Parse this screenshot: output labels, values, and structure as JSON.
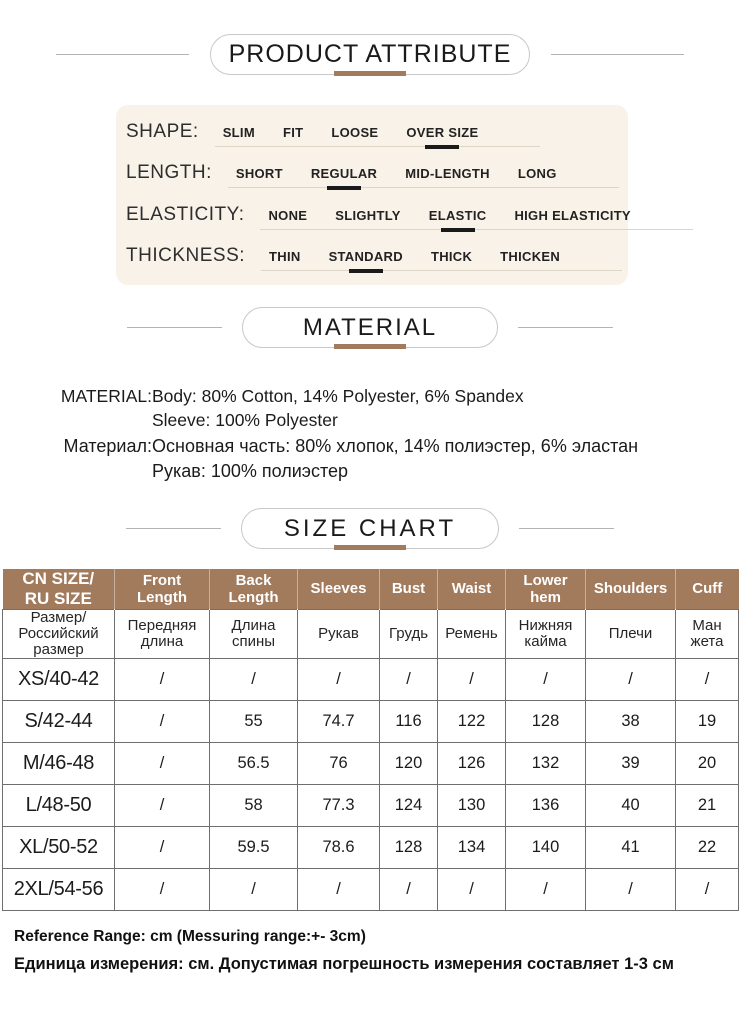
{
  "colors": {
    "accent_brown": "#a27a5c",
    "attribute_box_bg": "#f8f2e8",
    "table_header_text": "#ffffff",
    "selected_mark": "#1a1a1a"
  },
  "section_headers": {
    "product": "PRODUCT ATTRIBUTE",
    "material": "MATERIAL",
    "size_chart": "SIZE CHART"
  },
  "attributes": [
    {
      "label": "SHAPE:",
      "options": [
        "SLIM",
        "FIT",
        "LOOSE",
        "OVER SIZE"
      ],
      "selected_index": 3
    },
    {
      "label": "LENGTH:",
      "options": [
        "SHORT",
        "REGULAR",
        "MID-LENGTH",
        "LONG"
      ],
      "selected_index": 1
    },
    {
      "label": "ELASTICITY:",
      "options": [
        "NONE",
        "SLIGHTLY",
        "ELASTIC",
        "HIGH ELASTICITY"
      ],
      "selected_index": 2
    },
    {
      "label": "THICKNESS:",
      "options": [
        "THIN",
        "STANDARD",
        "THICK",
        "THICKEN"
      ],
      "selected_index": 1
    }
  ],
  "material": {
    "label_en": "MATERIAL:",
    "body_en": "Body: 80% Cotton, 14% Polyester, 6% Spandex",
    "sleeve_en": "Sleeve: 100% Polyester",
    "label_ru": "Материал: ",
    "body_ru": "Основная часть: 80% хлопок, 14% полиэстер, 6% эластан",
    "sleeve_ru": "Рукав: 100% полиэстер"
  },
  "size_chart": {
    "headers_en": [
      [
        "CN SIZE/",
        "RU SIZE"
      ],
      [
        "Front Length"
      ],
      [
        "Back Length"
      ],
      [
        "Sleeves"
      ],
      [
        "Bust"
      ],
      [
        "Waist"
      ],
      [
        "Lower hem"
      ],
      [
        "Shoulders"
      ],
      [
        "Cuff"
      ]
    ],
    "headers_ru": [
      [
        "Размер/",
        "Российский",
        "размер"
      ],
      [
        "Передняя",
        "длина"
      ],
      [
        "Длина",
        "спины"
      ],
      [
        "Рукав"
      ],
      [
        "Грудь"
      ],
      [
        "Ремень"
      ],
      [
        "Нижняя",
        "кайма"
      ],
      [
        "Плечи"
      ],
      [
        "Ман",
        "жета"
      ]
    ],
    "rows": [
      {
        "size": "XS/40-42",
        "values": [
          "/",
          "/",
          "/",
          "/",
          "/",
          "/",
          "/",
          "/"
        ]
      },
      {
        "size": "S/42-44",
        "values": [
          "/",
          "55",
          "74.7",
          "116",
          "122",
          "128",
          "38",
          "19"
        ]
      },
      {
        "size": "M/46-48",
        "values": [
          "/",
          "56.5",
          "76",
          "120",
          "126",
          "132",
          "39",
          "20"
        ]
      },
      {
        "size": "L/48-50",
        "values": [
          "/",
          "58",
          "77.3",
          "124",
          "130",
          "136",
          "40",
          "21"
        ]
      },
      {
        "size": "XL/50-52",
        "values": [
          "/",
          "59.5",
          "78.6",
          "128",
          "134",
          "140",
          "41",
          "22"
        ]
      },
      {
        "size": "2XL/54-56",
        "values": [
          "/",
          "/",
          "/",
          "/",
          "/",
          "/",
          "/",
          "/"
        ]
      }
    ]
  },
  "footer": {
    "line1": "Reference Range: cm (Messuring range:+- 3cm)",
    "line2": "Единица измерения: см. Допустимая погрешность измерения составляет 1-3 см"
  }
}
